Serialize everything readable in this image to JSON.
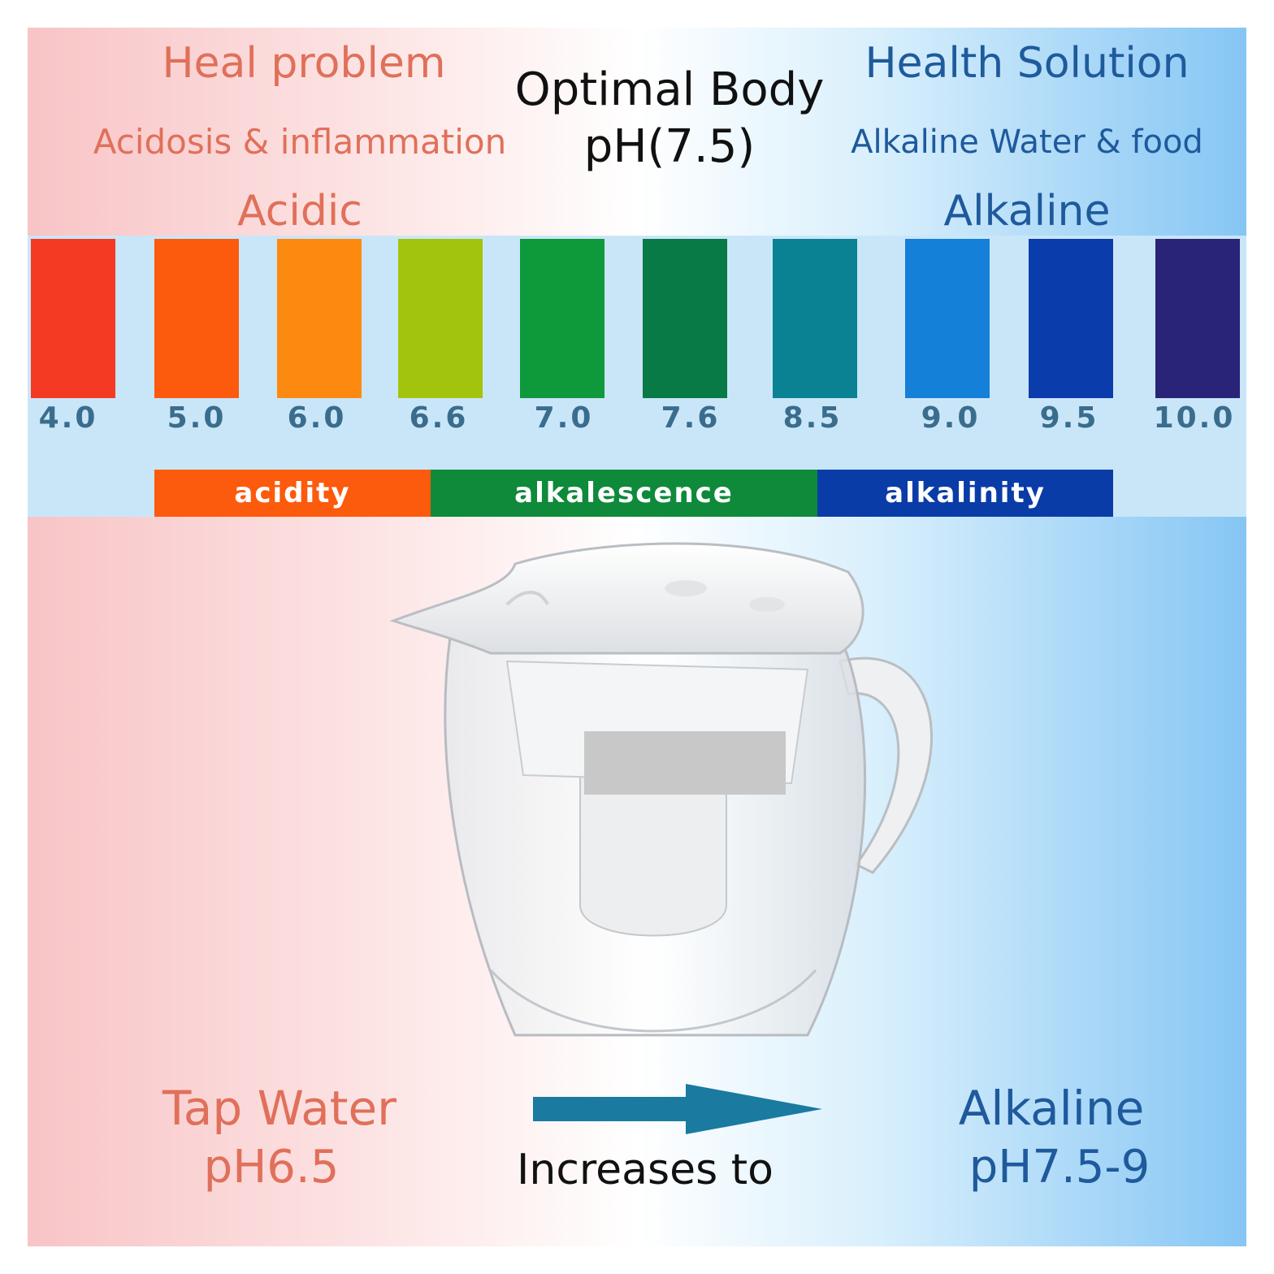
{
  "header": {
    "left_title": "Heal problem",
    "left_subtitle": "Acidosis & inflammation",
    "center_title_line1": "Optimal Body",
    "center_title_line2": "pH(7.5)",
    "right_title": "Health Solution",
    "right_subtitle": "Alkaline Water & food"
  },
  "scale": {
    "acidic_label": "Acidic",
    "alkaline_label": "Alkaline",
    "swatches": [
      {
        "value": "4.0",
        "color": "#f43a22"
      },
      {
        "value": "5.0",
        "color": "#fc5a0c"
      },
      {
        "value": "6.0",
        "color": "#fc8a10"
      },
      {
        "value": "6.6",
        "color": "#a3c40c"
      },
      {
        "value": "7.0",
        "color": "#0e9a3a"
      },
      {
        "value": "7.6",
        "color": "#087a46"
      },
      {
        "value": "8.5",
        "color": "#0a8294"
      },
      {
        "value": "9.0",
        "color": "#1480d8"
      },
      {
        "value": "9.5",
        "color": "#0a3cac"
      },
      {
        "value": "10.0",
        "color": "#2a2478"
      }
    ],
    "segments": [
      {
        "label": "acidity",
        "color": "#fc5a0c"
      },
      {
        "label": "alkalescence",
        "color": "#0e8a3a"
      },
      {
        "label": "alkalinity",
        "color": "#0a3ca8"
      }
    ]
  },
  "footer": {
    "left_title": "Tap Water",
    "left_ph": "pH6.5",
    "center_text": "Increases to",
    "right_title": "Alkaline",
    "right_ph": "pH7.5-9",
    "arrow_color": "#1a7aa0"
  }
}
